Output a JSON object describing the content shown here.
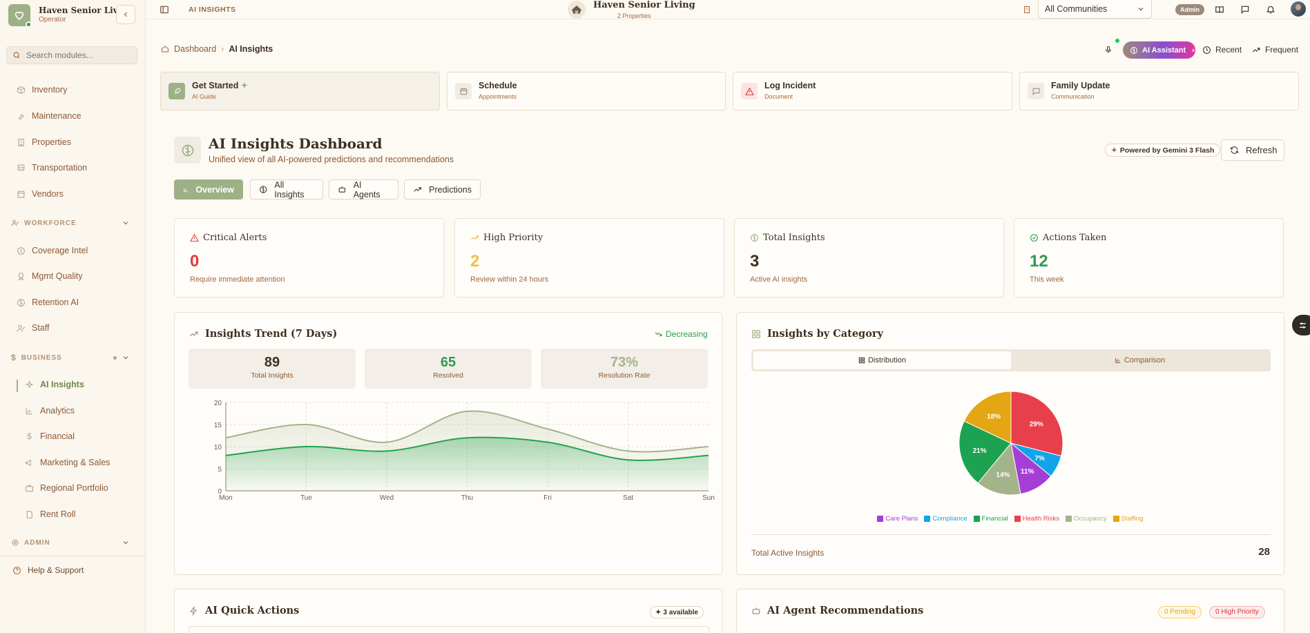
{
  "sidebar": {
    "org_name": "Haven Senior Livi...",
    "role": "Operator",
    "search_placeholder": "Search modules...",
    "items_top": [
      "Inventory",
      "Maintenance",
      "Properties",
      "Transportation",
      "Vendors"
    ],
    "workforce_label": "WORKFORCE",
    "workforce_items": [
      "Coverage Intel",
      "Mgmt Quality",
      "Retention AI",
      "Staff"
    ],
    "business_label": "BUSINESS",
    "business_items": [
      "AI Insights",
      "Analytics",
      "Financial",
      "Marketing & Sales",
      "Regional Portfolio",
      "Rent Roll"
    ],
    "admin_label": "ADMIN",
    "help": "Help & Support"
  },
  "topbar": {
    "section": "AI INSIGHTS",
    "brand": "Haven Senior Living",
    "properties": "2 Properties",
    "community": "All Communities",
    "admin_badge": "Admin"
  },
  "breadcrumb": {
    "home": "Dashboard",
    "current": "AI Insights"
  },
  "header_actions": {
    "assistant": "AI Assistant",
    "recent": "Recent",
    "frequent": "Frequent"
  },
  "quick_actions": [
    {
      "title": "Get Started",
      "sub": "AI Guide"
    },
    {
      "title": "Schedule",
      "sub": "Appointments"
    },
    {
      "title": "Log Incident",
      "sub": "Document"
    },
    {
      "title": "Family Update",
      "sub": "Communication"
    }
  ],
  "page": {
    "title": "AI Insights Dashboard",
    "subtitle": "Unified view of all AI-powered predictions and recommendations",
    "powered": "Powered by Gemini 3 Flash",
    "refresh": "Refresh"
  },
  "tabs": [
    "Overview",
    "All Insights",
    "AI Agents",
    "Predictions"
  ],
  "stats": [
    {
      "title": "Critical Alerts",
      "value": "0",
      "sub": "Require immediate attention",
      "color": "#e03b3b"
    },
    {
      "title": "High Priority",
      "value": "2",
      "sub": "Review within 24 hours",
      "color": "#f0bf45"
    },
    {
      "title": "Total Insights",
      "value": "3",
      "sub": "Active AI insights",
      "color": "#3d2f22"
    },
    {
      "title": "Actions Taken",
      "value": "12",
      "sub": "This week",
      "color": "#2e9a4f"
    }
  ],
  "trend": {
    "title": "Insights Trend (7 Days)",
    "status": "Decreasing",
    "totals": [
      {
        "value": "89",
        "label": "Total Insights"
      },
      {
        "value": "65",
        "label": "Resolved"
      },
      {
        "value": "73%",
        "label": "Resolution Rate"
      }
    ]
  },
  "category": {
    "title": "Insights by Category",
    "tab_distribution": "Distribution",
    "tab_comparison": "Comparison",
    "total_label": "Total Active Insights",
    "total_value": "28"
  },
  "bottom": {
    "quick_title": "AI Quick Actions",
    "quick_badge": "3 available",
    "agent_title": "AI Agent Recommendations",
    "pending": "0 Pending",
    "high": "0 High Priority"
  },
  "chart_data": [
    {
      "type": "area",
      "categories": [
        "Mon",
        "Tue",
        "Wed",
        "Thu",
        "Fri",
        "Sat",
        "Sun"
      ],
      "series": [
        {
          "values": [
            12,
            15,
            11,
            18,
            14,
            9,
            10
          ],
          "color": "#a3b38a"
        },
        {
          "values": [
            8,
            10,
            9,
            12,
            11,
            7,
            8
          ],
          "color": "#22a24b"
        }
      ],
      "yticks": [
        "0",
        "5",
        "10",
        "15",
        "20"
      ],
      "ylim": [
        0,
        20
      ],
      "grid": true
    },
    {
      "type": "pie",
      "slices": [
        {
          "name": "Health Risks",
          "value": 29,
          "label": "29%",
          "color": "#e8404a"
        },
        {
          "name": "Compliance",
          "value": 7,
          "label": "7%",
          "color": "#10a5e8"
        },
        {
          "name": "Care Plans",
          "value": 11,
          "label": "11%",
          "color": "#a43fd6"
        },
        {
          "name": "Occupancy",
          "value": 14,
          "label": "14%",
          "color": "#a3b38a"
        },
        {
          "name": "Financial",
          "value": 21,
          "label": "21%",
          "color": "#1da251"
        },
        {
          "name": "Staffing",
          "value": 18,
          "label": "18%",
          "color": "#e4a612"
        }
      ],
      "legend": [
        "Care Plans",
        "Compliance",
        "Financial",
        "Health Risks",
        "Occupancy",
        "Staffing"
      ]
    }
  ]
}
